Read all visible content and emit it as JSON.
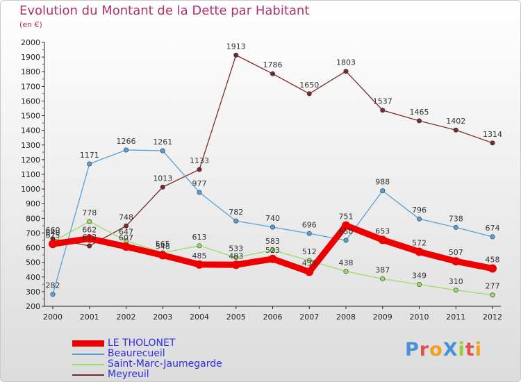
{
  "chart_data": {
    "type": "line",
    "title": "Evolution du Montant de la Dette par Habitant",
    "subtitle": "(en €)",
    "x": [
      "2000",
      "2001",
      "2002",
      "2003",
      "2004",
      "2005",
      "2006",
      "2007",
      "2008",
      "2009",
      "2010",
      "2011",
      "2012"
    ],
    "ylim": [
      200,
      2000
    ],
    "yticks": [
      200,
      300,
      400,
      500,
      600,
      700,
      800,
      900,
      1000,
      1100,
      1200,
      1300,
      1400,
      1500,
      1600,
      1700,
      1800,
      1900,
      2000
    ],
    "grid": false,
    "legend_position": "bottom-left",
    "series": [
      {
        "name": "LE THOLONET",
        "color": "#ee0000",
        "values": [
          625,
          662,
          607,
          548,
          485,
          483,
          523,
          435,
          751,
          653,
          572,
          507,
          458
        ],
        "labels": [
          "625",
          "662",
          "607",
          "548",
          "485",
          "483",
          "523",
          "435",
          "751",
          "653",
          "572",
          "507",
          "458"
        ]
      },
      {
        "name": "Beaurecueil",
        "color": "#5a9fd6",
        "values": [
          282,
          1171,
          1266,
          1261,
          977,
          782,
          740,
          696,
          650,
          988,
          796,
          738,
          674
        ],
        "labels": [
          "282",
          "1171",
          "1266",
          "1261",
          "977",
          "782",
          "740",
          "696",
          "650",
          "988",
          "796",
          "738",
          "674"
        ]
      },
      {
        "name": "Saint-Marc-Jaumegarde",
        "color": "#99dd66",
        "values": [
          640,
          778,
          647,
          565,
          613,
          533,
          583,
          512,
          438,
          387,
          349,
          310,
          277
        ],
        "labels": [
          "640",
          "778",
          "647",
          "565",
          "613",
          "533",
          "583",
          "512",
          "438",
          "387",
          "349",
          "310",
          "277"
        ]
      },
      {
        "name": "Meyreuil",
        "color": "#7a2a2a",
        "values": [
          660,
          612,
          748,
          1013,
          1133,
          1913,
          1786,
          1650,
          1803,
          1537,
          1465,
          1402,
          1314
        ],
        "labels": [
          "660",
          "612",
          "748",
          "1013",
          "1133",
          "1913",
          "1786",
          "1650",
          "1803",
          "1537",
          "1465",
          "1402",
          "1314"
        ]
      }
    ]
  },
  "brand": {
    "text": "ProXiti",
    "letters": [
      {
        "ch": "P",
        "color": "#4a8fd8"
      },
      {
        "ch": "r",
        "color": "#e05050"
      },
      {
        "ch": "o",
        "color": "#f0a020"
      },
      {
        "ch": "X",
        "color": "#4a8fd8"
      },
      {
        "ch": "i",
        "color": "#9acd32"
      },
      {
        "ch": "t",
        "color": "#e05050"
      },
      {
        "ch": "i",
        "color": "#f0a020"
      }
    ]
  }
}
